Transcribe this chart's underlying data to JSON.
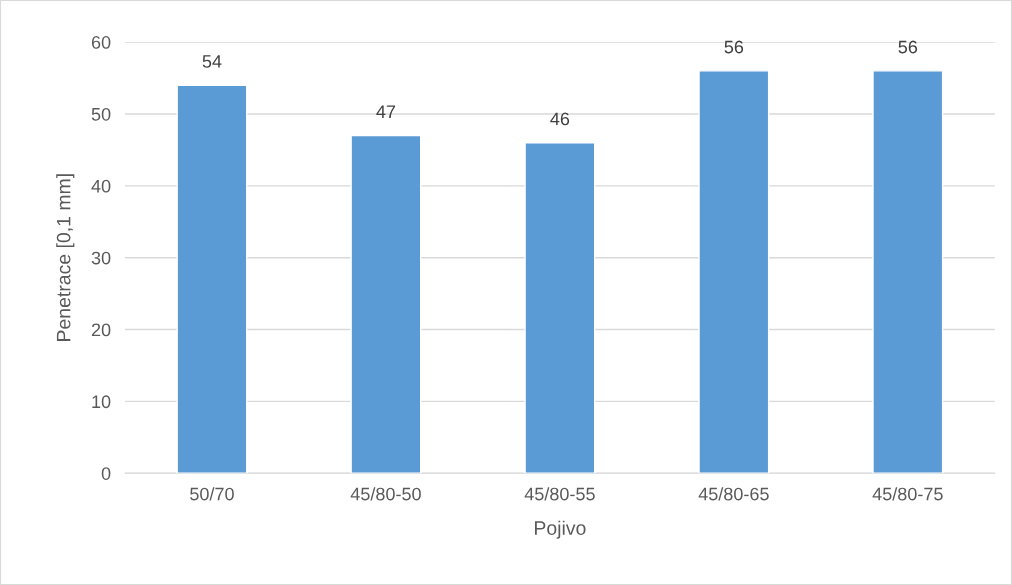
{
  "chart_data": {
    "type": "bar",
    "xlabel": "Pojivo",
    "ylabel": "Penetrace [0,1 mm]",
    "categories": [
      "50/70",
      "45/80-50",
      "45/80-55",
      "45/80-65",
      "45/80-75"
    ],
    "values": [
      54,
      47,
      46,
      56,
      56
    ],
    "color": "#5b9bd5",
    "ylim": [
      0,
      60
    ],
    "yticks": [
      0,
      10,
      20,
      30,
      40,
      50,
      60
    ],
    "grid": "y",
    "data_labels": true
  }
}
